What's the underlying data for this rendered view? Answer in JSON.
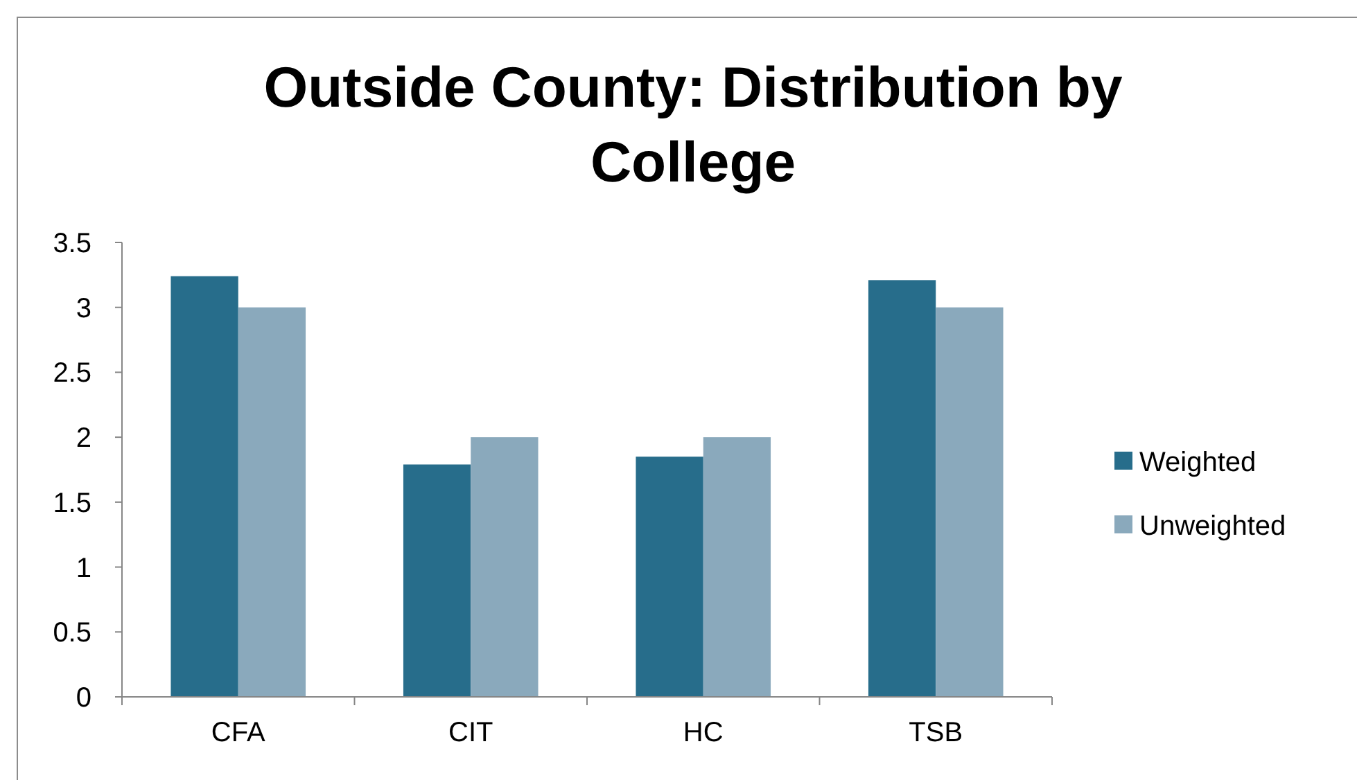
{
  "chart_data": {
    "type": "bar",
    "title": "Outside County: Distribution by College",
    "categories": [
      "CFA",
      "CIT",
      "HC",
      "TSB"
    ],
    "series": [
      {
        "name": "Weighted",
        "color": "#276d8b",
        "values": [
          3.24,
          1.79,
          1.85,
          3.21
        ]
      },
      {
        "name": "Unweighted",
        "color": "#8aa9bc",
        "values": [
          3,
          2,
          2,
          3
        ]
      }
    ],
    "ylim": [
      0,
      3.5
    ],
    "yticks": [
      0,
      0.5,
      1,
      1.5,
      2,
      2.5,
      3,
      3.5
    ],
    "grid": false,
    "legend": "right"
  }
}
